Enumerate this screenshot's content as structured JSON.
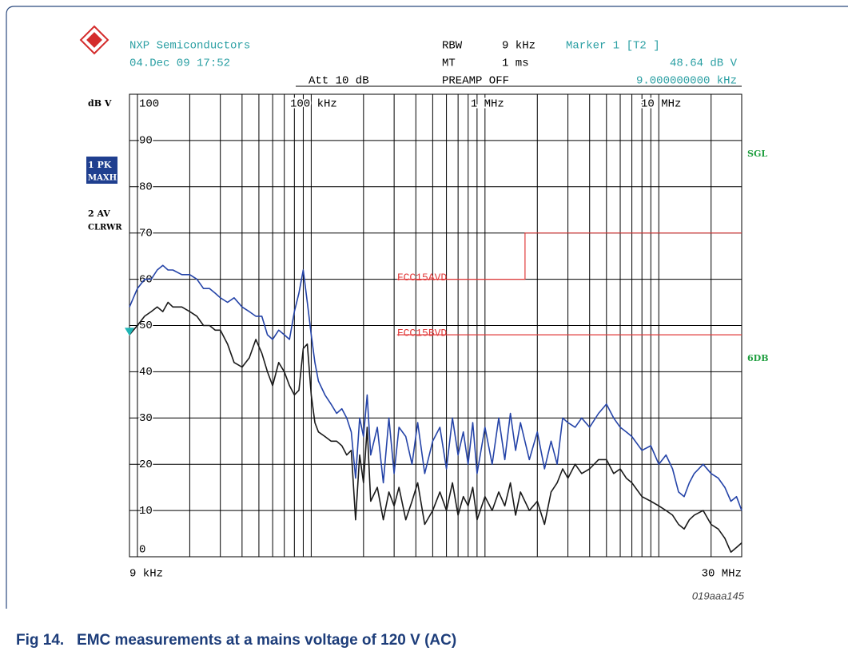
{
  "header": {
    "company": "NXP Semiconductors",
    "date": "04.Dec 09 17:52",
    "rbw_label": "RBW",
    "rbw_value": "9 kHz",
    "mt_label": "MT",
    "mt_value": "1 ms",
    "att": "Att 10 dB",
    "preamp": "PREAMP OFF",
    "marker_label": "Marker 1 [T2 ]",
    "marker_level": "48.64 dB V",
    "marker_freq": "9.000000000 kHz"
  },
  "side_labels": {
    "trace1_a": "1 PK",
    "trace1_b": "MAXH",
    "trace2_a": "2 AV",
    "trace2_b": "CLRWR",
    "sgl": "SGL",
    "sixdb": "6DB"
  },
  "figure_id": "019aaa145",
  "caption": "Fig 14.   EMC measurements at a mains voltage of 120 V (AC)",
  "chart_data": {
    "type": "line",
    "ylabel": "dB V",
    "xscale": "log",
    "grid": true,
    "xlim": [
      9000,
      30000000
    ],
    "xend_labels": [
      {
        "value": 9000,
        "label": "9 kHz"
      },
      {
        "value": 30000000,
        "label": "30 MHz"
      }
    ],
    "xticks": [
      {
        "value": 100000,
        "label": "100 kHz"
      },
      {
        "value": 1000000,
        "label": "1 MHz"
      },
      {
        "value": 10000000,
        "label": "10 MHz"
      }
    ],
    "xgrid": [
      10000,
      20000,
      30000,
      40000,
      50000,
      60000,
      70000,
      80000,
      90000,
      200000,
      300000,
      400000,
      500000,
      600000,
      700000,
      800000,
      900000,
      2000000,
      3000000,
      4000000,
      5000000,
      6000000,
      7000000,
      8000000,
      9000000,
      20000000
    ],
    "ylim": [
      0,
      100
    ],
    "yticks": [
      0,
      10,
      20,
      30,
      40,
      50,
      60,
      70,
      80,
      90,
      100
    ],
    "x": [
      9000,
      10000,
      11000,
      12000,
      13000,
      14000,
      15000,
      16000,
      18000,
      20000,
      22000,
      24000,
      26000,
      28000,
      30000,
      33000,
      36000,
      40000,
      44000,
      48000,
      52000,
      56000,
      60000,
      65000,
      70000,
      75000,
      80000,
      85000,
      90000,
      95000,
      100000,
      105000,
      110000,
      120000,
      130000,
      140000,
      150000,
      160000,
      170000,
      180000,
      190000,
      200000,
      210000,
      220000,
      240000,
      260000,
      280000,
      300000,
      320000,
      350000,
      380000,
      410000,
      450000,
      500000,
      550000,
      600000,
      650000,
      700000,
      750000,
      800000,
      850000,
      900000,
      1000000,
      1100000,
      1200000,
      1300000,
      1400000,
      1500000,
      1600000,
      1800000,
      2000000,
      2200000,
      2400000,
      2600000,
      2800000,
      3000000,
      3300000,
      3600000,
      4000000,
      4500000,
      5000000,
      5500000,
      6000000,
      6500000,
      7000000,
      8000000,
      9000000,
      10000000,
      11000000,
      12000000,
      13000000,
      14000000,
      15000000,
      16000000,
      18000000,
      20000000,
      22000000,
      24000000,
      26000000,
      28000000,
      30000000
    ],
    "series": [
      {
        "color": "#2544a8",
        "values": [
          54,
          58,
          60,
          60,
          62,
          63,
          62,
          62,
          61,
          61,
          60,
          58,
          58,
          57,
          56,
          55,
          56,
          54,
          53,
          52,
          52,
          48,
          47,
          49,
          48,
          47,
          53,
          57,
          62,
          55,
          48,
          42,
          38,
          35,
          33,
          31,
          32,
          30,
          27,
          17,
          30,
          26,
          35,
          22,
          28,
          16,
          30,
          18,
          28,
          26,
          20,
          29,
          18,
          25,
          28,
          19,
          30,
          22,
          27,
          20,
          29,
          18,
          28,
          20,
          30,
          21,
          31,
          23,
          29,
          21,
          27,
          19,
          25,
          20,
          30,
          29,
          28,
          30,
          28,
          31,
          33,
          30,
          28,
          27,
          26,
          23,
          24,
          20,
          22,
          19,
          14,
          13,
          16,
          18,
          20,
          18,
          17,
          15,
          12,
          13,
          10
        ]
      },
      {
        "color": "#1a1a1a",
        "values": [
          48,
          50,
          52,
          53,
          54,
          53,
          55,
          54,
          54,
          53,
          52,
          50,
          50,
          49,
          49,
          46,
          42,
          41,
          43,
          47,
          44,
          40,
          37,
          42,
          40,
          37,
          35,
          36,
          45,
          46,
          35,
          29,
          27,
          26,
          25,
          25,
          24,
          22,
          23,
          8,
          22,
          16,
          28,
          12,
          15,
          8,
          14,
          11,
          15,
          8,
          12,
          16,
          7,
          10,
          14,
          10,
          16,
          9,
          13,
          11,
          15,
          8,
          13,
          10,
          14,
          11,
          16,
          9,
          14,
          10,
          12,
          7,
          14,
          16,
          19,
          17,
          20,
          18,
          19,
          21,
          21,
          18,
          19,
          17,
          16,
          13,
          12,
          11,
          10,
          9,
          7,
          6,
          8,
          9,
          10,
          7,
          6,
          4,
          1,
          2,
          3
        ]
      }
    ],
    "limits": [
      {
        "name": "FCC15AVD",
        "color": "#e23b3b",
        "x": [
          312000,
          1700000,
          1700000,
          30000000
        ],
        "values": [
          60,
          60,
          70,
          70
        ]
      },
      {
        "name": "FCC15BVD",
        "color": "#e23b3b",
        "x": [
          312000,
          30000000
        ],
        "values": [
          48,
          48
        ]
      }
    ],
    "marker": {
      "x": 9000,
      "value": 48.64,
      "color": "#1fb5b5"
    }
  }
}
